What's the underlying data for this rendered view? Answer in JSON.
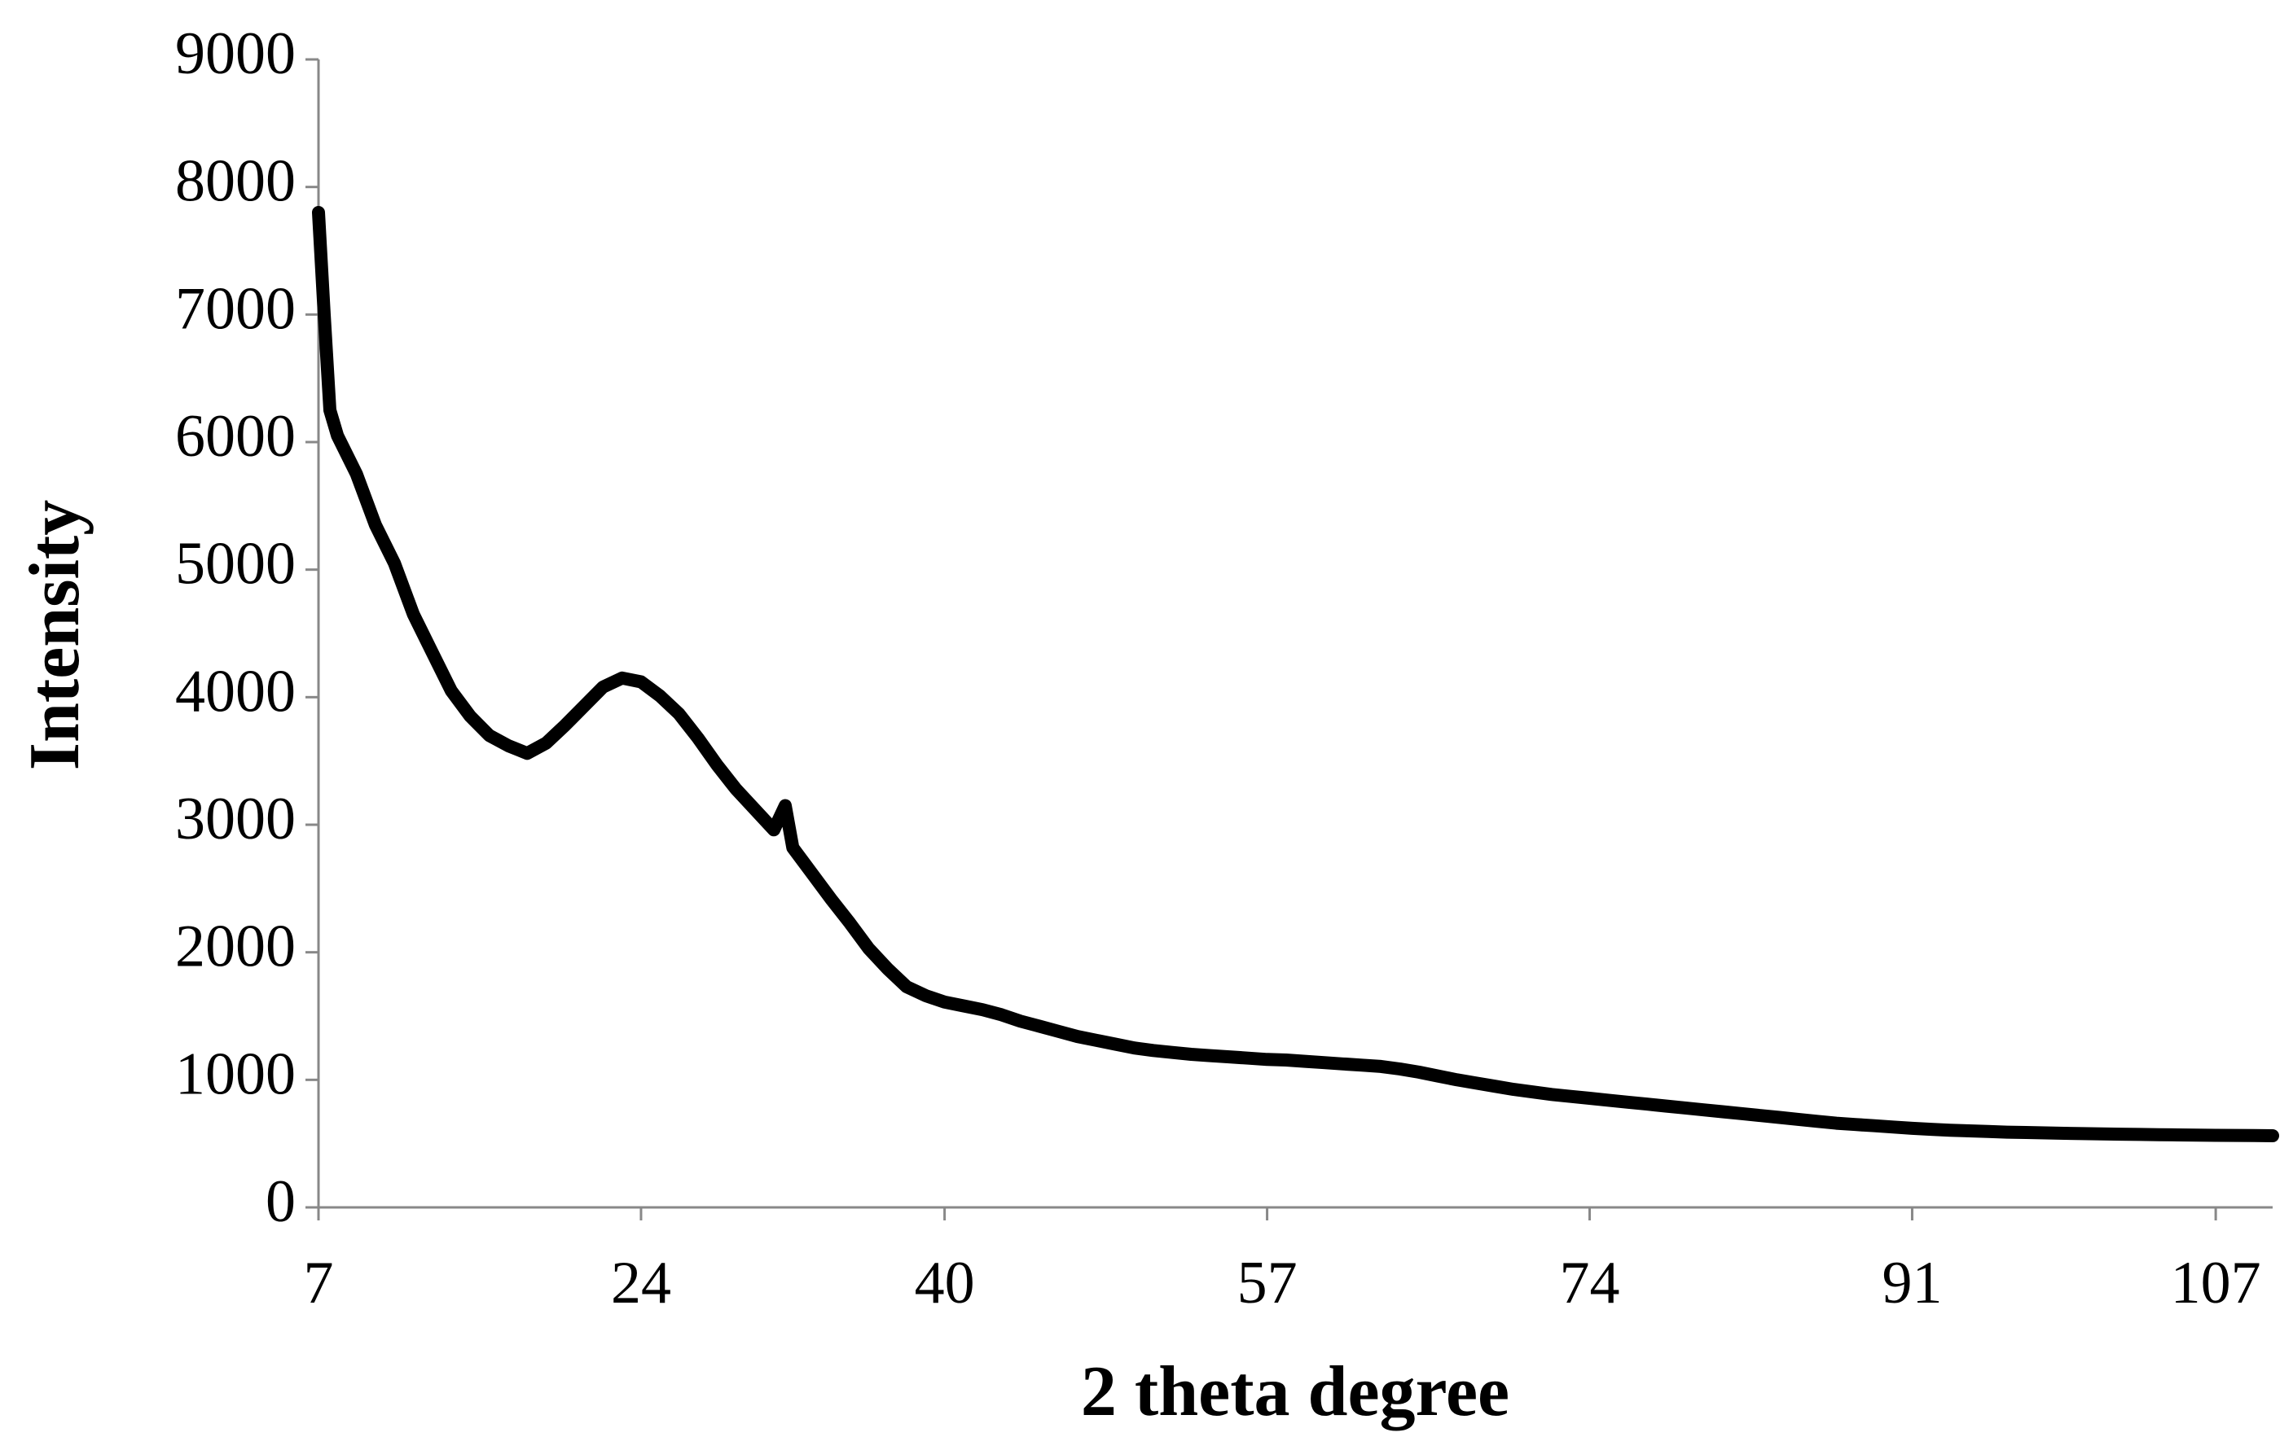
{
  "chart_data": {
    "type": "line",
    "xlabel": "2 theta degree",
    "ylabel": "Intensity",
    "x": [
      7,
      7.3,
      7.6,
      8,
      9,
      10,
      11,
      12,
      13,
      14,
      15,
      16,
      17,
      18,
      19,
      20,
      21,
      22,
      23,
      24,
      25,
      26,
      27,
      28,
      29,
      30,
      31,
      31.6,
      32,
      33,
      34,
      35,
      36,
      37,
      38,
      39,
      40,
      41,
      42,
      43,
      44,
      45,
      46,
      47,
      48,
      49,
      50,
      51,
      52,
      53,
      54,
      55,
      56,
      57,
      58,
      59,
      60,
      61,
      62,
      63,
      64,
      65,
      66,
      67,
      68,
      69,
      70,
      71,
      72,
      73,
      74,
      75,
      76,
      77,
      78,
      79,
      80,
      81,
      82,
      83,
      84,
      85,
      86,
      87,
      88,
      89,
      90,
      91,
      92,
      93,
      94,
      95,
      96,
      97,
      98,
      99,
      100,
      101,
      102,
      103,
      104,
      105,
      106,
      107,
      108,
      109,
      110
    ],
    "series": [
      {
        "color": "#000000",
        "values": [
          7800,
          7000,
          6250,
          6050,
          5750,
          5350,
          5050,
          4650,
          4350,
          4050,
          3850,
          3700,
          3620,
          3560,
          3640,
          3780,
          3930,
          4080,
          4150,
          4120,
          4010,
          3870,
          3680,
          3470,
          3280,
          3120,
          2960,
          3150,
          2820,
          2620,
          2420,
          2230,
          2030,
          1870,
          1730,
          1660,
          1610,
          1580,
          1550,
          1510,
          1460,
          1420,
          1380,
          1340,
          1310,
          1280,
          1250,
          1230,
          1215,
          1200,
          1190,
          1180,
          1170,
          1160,
          1155,
          1145,
          1135,
          1125,
          1115,
          1105,
          1085,
          1060,
          1030,
          1000,
          975,
          950,
          925,
          905,
          885,
          870,
          855,
          840,
          825,
          810,
          795,
          780,
          765,
          750,
          735,
          720,
          705,
          690,
          675,
          660,
          650,
          640,
          630,
          620,
          612,
          605,
          600,
          595,
          590,
          587,
          584,
          581,
          578,
          576,
          574,
          572,
          570,
          568,
          566,
          565,
          564,
          563,
          562
        ]
      }
    ],
    "xlim": [
      7,
      110
    ],
    "xticks": [
      7,
      24,
      40,
      57,
      74,
      91,
      107
    ],
    "ylim": [
      0,
      9000
    ],
    "yticks": [
      0,
      1000,
      2000,
      3000,
      4000,
      5000,
      6000,
      7000,
      8000,
      9000
    ]
  }
}
